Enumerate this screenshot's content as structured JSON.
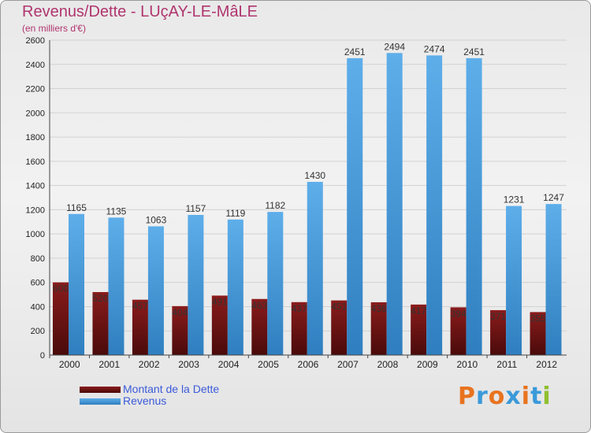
{
  "title": "Revenus/Dette - LUçAY-LE-MâLE",
  "subtitle": "(en milliers d'€)",
  "logo": {
    "text": "Proxiti",
    "letters": [
      "P",
      "r",
      "o",
      "x",
      "i",
      "t",
      "i"
    ],
    "colors": [
      "#e8731f",
      "#3a9ad9",
      "#e8731f",
      "#3a9ad9",
      "#e8731f",
      "#3a9ad9",
      "#8fbf2f"
    ]
  },
  "colors": {
    "debt_top": "#8a1c1c",
    "debt_bottom": "#4a0a0a",
    "revenue_light": "#5eaeea",
    "revenue_dark": "#2f7fc0",
    "axis_text": "#222222",
    "grid": "#d2d2d2"
  },
  "chart_data": {
    "type": "bar",
    "categories": [
      "2000",
      "2001",
      "2002",
      "2003",
      "2004",
      "2005",
      "2006",
      "2007",
      "2008",
      "2009",
      "2010",
      "2011",
      "2012"
    ],
    "series": [
      {
        "name": "Montant de la Dette",
        "values": [
          600,
          520,
          457,
          404,
          491,
          463,
          437,
          451,
          436,
          417,
          394,
          371,
          355
        ]
      },
      {
        "name": "Revenus",
        "values": [
          1165,
          1135,
          1063,
          1157,
          1119,
          1182,
          1430,
          2451,
          2494,
          2474,
          2451,
          1231,
          1247
        ]
      }
    ],
    "yticks": [
      0,
      200,
      400,
      600,
      800,
      1000,
      1200,
      1400,
      1600,
      1800,
      2000,
      2200,
      2400,
      2600
    ],
    "ylim": [
      0,
      2600
    ],
    "grid": true,
    "legend_position": "bottom-left"
  }
}
